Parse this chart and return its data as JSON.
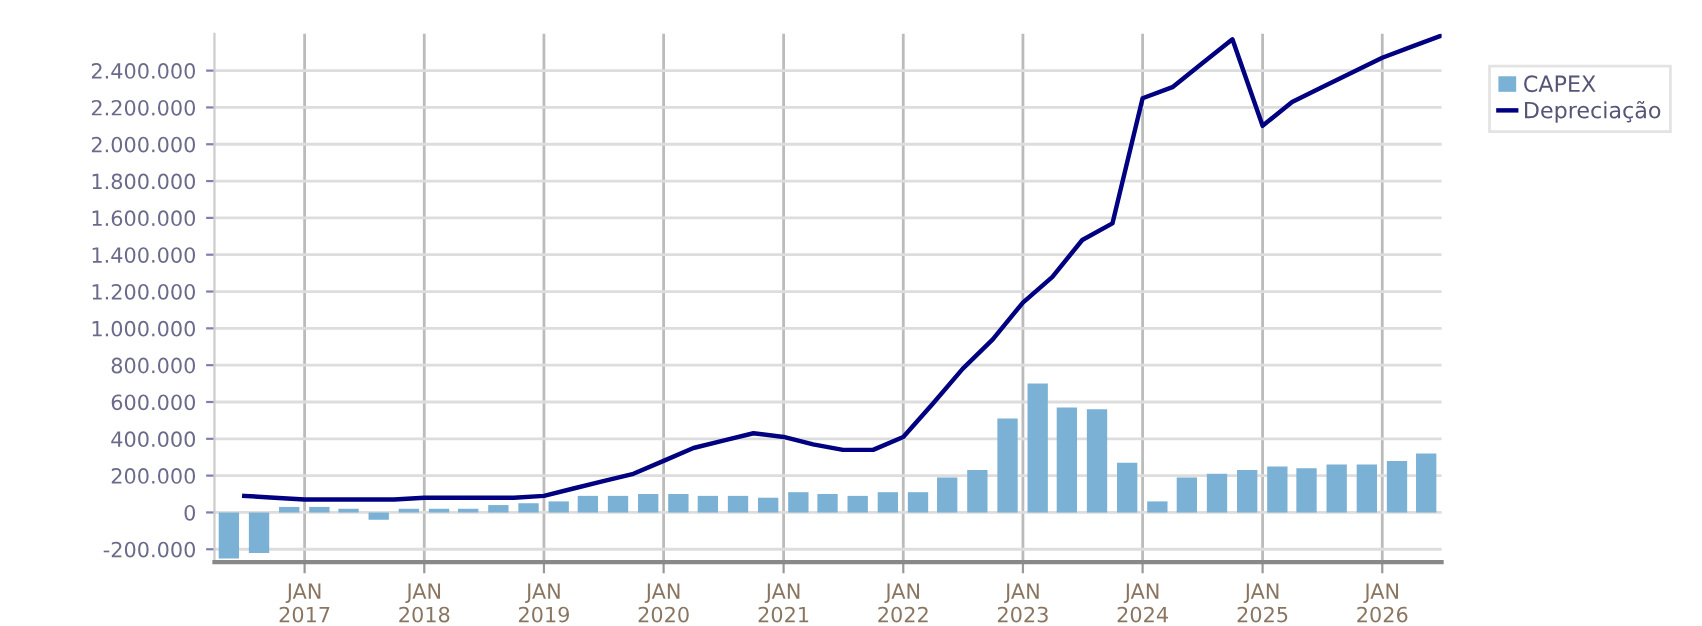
{
  "chart_data": {
    "type": "bar",
    "xlim": [
      "2016-04-01",
      "2026-07-01"
    ],
    "xticks": [
      {
        "value": "2017-01-01",
        "label": "JAN\n2017"
      },
      {
        "value": "2018-01-01",
        "label": "JAN\n2018"
      },
      {
        "value": "2019-01-01",
        "label": "JAN\n2019"
      },
      {
        "value": "2020-01-01",
        "label": "JAN\n2020"
      },
      {
        "value": "2021-01-01",
        "label": "JAN\n2021"
      },
      {
        "value": "2022-01-01",
        "label": "JAN\n2022"
      },
      {
        "value": "2023-01-01",
        "label": "JAN\n2023"
      },
      {
        "value": "2024-01-01",
        "label": "JAN\n2024"
      },
      {
        "value": "2025-01-01",
        "label": "JAN\n2025"
      },
      {
        "value": "2026-01-01",
        "label": "JAN\n2026"
      }
    ],
    "ylim": [
      -270000,
      2600000
    ],
    "yticks": [
      {
        "value": -200000,
        "label": "-200.000"
      },
      0,
      {
        "value": 200000,
        "label": "200.000"
      },
      {
        "value": 400000,
        "label": "400.000"
      },
      {
        "value": 600000,
        "label": "600.000"
      },
      {
        "value": 800000,
        "label": "800.000"
      },
      {
        "value": 1000000,
        "label": "1.000.000"
      },
      {
        "value": 1200000,
        "label": "1.200.000"
      },
      {
        "value": 1400000,
        "label": "1.400.000"
      },
      {
        "value": 1600000,
        "label": "1.600.000"
      },
      {
        "value": 1800000,
        "label": "1.800.000"
      },
      {
        "value": 2000000,
        "label": "2.000.000"
      },
      {
        "value": 2200000,
        "label": "2.200.000"
      },
      {
        "value": 2400000,
        "label": "2.400.000"
      }
    ],
    "grid": true,
    "legend": "top right",
    "series": [
      {
        "name": "CAPEX",
        "color": "#7ab1d4",
        "x": [
          "2016-05-15",
          "2016-08-15",
          "2016-11-15",
          "2017-02-15",
          "2017-05-15",
          "2017-08-15",
          "2017-11-15",
          "2018-02-15",
          "2018-05-15",
          "2018-08-15",
          "2018-11-15",
          "2019-02-15",
          "2019-05-15",
          "2019-08-15",
          "2019-11-15",
          "2020-02-15",
          "2020-05-15",
          "2020-08-15",
          "2020-11-15",
          "2021-02-15",
          "2021-05-15",
          "2021-08-15",
          "2021-11-15",
          "2022-02-15",
          "2022-05-15",
          "2022-08-15",
          "2022-11-15",
          "2023-02-15",
          "2023-05-15",
          "2023-08-15",
          "2023-11-15",
          "2024-02-15",
          "2024-05-15",
          "2024-08-15",
          "2024-11-15",
          "2025-02-15",
          "2025-05-15",
          "2025-08-15",
          "2025-11-15",
          "2026-02-15",
          "2026-05-15"
        ],
        "values": [
          -250000,
          -220000,
          30000,
          30000,
          20000,
          -40000,
          20000,
          20000,
          20000,
          40000,
          50000,
          60000,
          90000,
          90000,
          100000,
          100000,
          90000,
          90000,
          80000,
          110000,
          100000,
          90000,
          110000,
          110000,
          190000,
          230000,
          510000,
          700000,
          570000,
          560000,
          270000,
          60000,
          190000,
          210000,
          230000,
          250000,
          240000,
          260000,
          260000,
          280000,
          320000
        ]
      },
      {
        "name": "Depreciação",
        "type": "line",
        "color": "#000080",
        "x": [
          "2016-07-01",
          "2016-10-01",
          "2017-01-01",
          "2017-04-01",
          "2017-07-01",
          "2017-10-01",
          "2018-01-01",
          "2018-04-01",
          "2018-07-01",
          "2018-10-01",
          "2019-01-01",
          "2019-04-01",
          "2019-07-01",
          "2019-10-01",
          "2020-01-01",
          "2020-04-01",
          "2020-07-01",
          "2020-10-01",
          "2021-01-01",
          "2021-04-01",
          "2021-07-01",
          "2021-10-01",
          "2022-01-01",
          "2022-04-01",
          "2022-07-01",
          "2022-10-01",
          "2023-01-01",
          "2023-04-01",
          "2023-07-01",
          "2023-10-01",
          "2024-01-01",
          "2024-04-01",
          "2024-07-01",
          "2024-10-01",
          "2025-01-01",
          "2025-04-01",
          "2025-07-01",
          "2025-10-01",
          "2026-01-01",
          "2026-04-01",
          "2026-07-01"
        ],
        "values": [
          90000,
          80000,
          70000,
          70000,
          70000,
          70000,
          80000,
          80000,
          80000,
          80000,
          90000,
          130000,
          170000,
          210000,
          280000,
          350000,
          390000,
          430000,
          410000,
          370000,
          340000,
          340000,
          410000,
          590000,
          780000,
          940000,
          1140000,
          1280000,
          1480000,
          1570000,
          2250000,
          2310000,
          2440000,
          2570000,
          2100000,
          2230000,
          2310000,
          2390000,
          2470000,
          2530000,
          2590000
        ]
      }
    ]
  }
}
